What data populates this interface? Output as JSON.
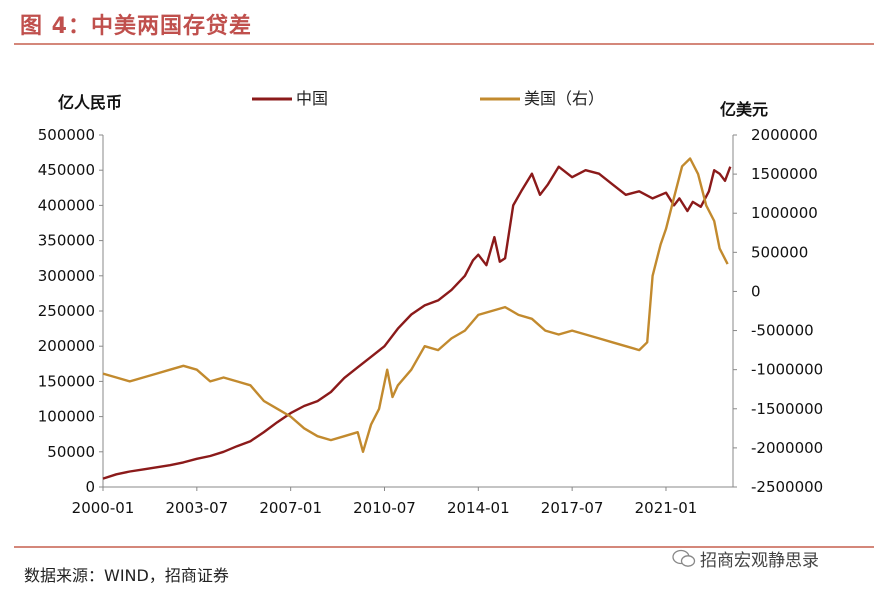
{
  "header": {
    "title": "图 4：中美两国存贷差"
  },
  "footer": {
    "source": "数据来源：WIND，招商证券",
    "watermark": "招商宏观静思录"
  },
  "colors": {
    "china": "#8b1a1a",
    "us": "#c28a2e",
    "accent": "#c0504d",
    "rule": "#d4877a"
  },
  "chart_data": {
    "type": "line",
    "left_axis_unit": "亿人民币",
    "right_axis_unit": "亿美元",
    "ylim_left": [
      0,
      500000
    ],
    "ylim_right": [
      -2500000,
      2000000
    ],
    "yticks_left": [
      "0",
      "50000",
      "100000",
      "150000",
      "200000",
      "250000",
      "300000",
      "350000",
      "400000",
      "450000",
      "500000"
    ],
    "yticks_right": [
      "-2500000",
      "-2000000",
      "-1500000",
      "-1000000",
      "-500000",
      "0",
      "500000",
      "1000000",
      "1500000",
      "2000000"
    ],
    "xticks": [
      "2000-01",
      "2003-07",
      "2007-01",
      "2010-07",
      "2014-01",
      "2017-07",
      "2021-01"
    ],
    "xlim": [
      2000.0,
      2023.5
    ],
    "legend": [
      "中国",
      "美国（右）"
    ],
    "legend_position": "top",
    "series": [
      {
        "name": "中国",
        "axis": "left",
        "points": [
          [
            2000.0,
            12000
          ],
          [
            2000.5,
            18000
          ],
          [
            2001.0,
            22000
          ],
          [
            2001.5,
            25000
          ],
          [
            2002.0,
            28000
          ],
          [
            2002.5,
            31000
          ],
          [
            2003.0,
            35000
          ],
          [
            2003.5,
            40000
          ],
          [
            2004.0,
            44000
          ],
          [
            2004.5,
            50000
          ],
          [
            2005.0,
            58000
          ],
          [
            2005.5,
            65000
          ],
          [
            2006.0,
            78000
          ],
          [
            2006.5,
            92000
          ],
          [
            2007.0,
            105000
          ],
          [
            2007.5,
            115000
          ],
          [
            2008.0,
            122000
          ],
          [
            2008.5,
            135000
          ],
          [
            2009.0,
            155000
          ],
          [
            2009.5,
            170000
          ],
          [
            2010.0,
            185000
          ],
          [
            2010.5,
            200000
          ],
          [
            2011.0,
            225000
          ],
          [
            2011.5,
            245000
          ],
          [
            2012.0,
            258000
          ],
          [
            2012.5,
            265000
          ],
          [
            2013.0,
            280000
          ],
          [
            2013.5,
            300000
          ],
          [
            2013.8,
            322000
          ],
          [
            2014.0,
            330000
          ],
          [
            2014.3,
            315000
          ],
          [
            2014.6,
            355000
          ],
          [
            2014.8,
            320000
          ],
          [
            2015.0,
            325000
          ],
          [
            2015.3,
            400000
          ],
          [
            2015.6,
            420000
          ],
          [
            2016.0,
            445000
          ],
          [
            2016.3,
            415000
          ],
          [
            2016.6,
            430000
          ],
          [
            2017.0,
            455000
          ],
          [
            2017.5,
            440000
          ],
          [
            2018.0,
            450000
          ],
          [
            2018.5,
            445000
          ],
          [
            2019.0,
            430000
          ],
          [
            2019.5,
            415000
          ],
          [
            2020.0,
            420000
          ],
          [
            2020.5,
            410000
          ],
          [
            2021.0,
            418000
          ],
          [
            2021.3,
            400000
          ],
          [
            2021.5,
            410000
          ],
          [
            2021.8,
            392000
          ],
          [
            2022.0,
            405000
          ],
          [
            2022.3,
            398000
          ],
          [
            2022.6,
            420000
          ],
          [
            2022.8,
            450000
          ],
          [
            2023.0,
            445000
          ],
          [
            2023.2,
            435000
          ],
          [
            2023.4,
            455000
          ]
        ]
      },
      {
        "name": "美国（右）",
        "axis": "right",
        "points": [
          [
            2000.0,
            -1050000
          ],
          [
            2000.5,
            -1100000
          ],
          [
            2001.0,
            -1150000
          ],
          [
            2001.5,
            -1100000
          ],
          [
            2002.0,
            -1050000
          ],
          [
            2002.5,
            -1000000
          ],
          [
            2003.0,
            -950000
          ],
          [
            2003.5,
            -1000000
          ],
          [
            2004.0,
            -1150000
          ],
          [
            2004.5,
            -1100000
          ],
          [
            2005.0,
            -1150000
          ],
          [
            2005.5,
            -1200000
          ],
          [
            2006.0,
            -1400000
          ],
          [
            2006.5,
            -1500000
          ],
          [
            2007.0,
            -1600000
          ],
          [
            2007.5,
            -1750000
          ],
          [
            2008.0,
            -1850000
          ],
          [
            2008.5,
            -1900000
          ],
          [
            2009.0,
            -1850000
          ],
          [
            2009.5,
            -1800000
          ],
          [
            2009.7,
            -2050000
          ],
          [
            2010.0,
            -1700000
          ],
          [
            2010.3,
            -1500000
          ],
          [
            2010.6,
            -1000000
          ],
          [
            2010.8,
            -1350000
          ],
          [
            2011.0,
            -1200000
          ],
          [
            2011.5,
            -1000000
          ],
          [
            2012.0,
            -700000
          ],
          [
            2012.5,
            -750000
          ],
          [
            2013.0,
            -600000
          ],
          [
            2013.5,
            -500000
          ],
          [
            2014.0,
            -300000
          ],
          [
            2014.5,
            -250000
          ],
          [
            2015.0,
            -200000
          ],
          [
            2015.5,
            -300000
          ],
          [
            2016.0,
            -350000
          ],
          [
            2016.5,
            -500000
          ],
          [
            2017.0,
            -550000
          ],
          [
            2017.5,
            -500000
          ],
          [
            2018.0,
            -550000
          ],
          [
            2018.5,
            -600000
          ],
          [
            2019.0,
            -650000
          ],
          [
            2019.5,
            -700000
          ],
          [
            2020.0,
            -750000
          ],
          [
            2020.3,
            -650000
          ],
          [
            2020.5,
            200000
          ],
          [
            2020.8,
            600000
          ],
          [
            2021.0,
            800000
          ],
          [
            2021.3,
            1200000
          ],
          [
            2021.6,
            1600000
          ],
          [
            2021.9,
            1700000
          ],
          [
            2022.2,
            1500000
          ],
          [
            2022.5,
            1100000
          ],
          [
            2022.8,
            900000
          ],
          [
            2023.0,
            550000
          ],
          [
            2023.3,
            350000
          ]
        ]
      }
    ]
  }
}
